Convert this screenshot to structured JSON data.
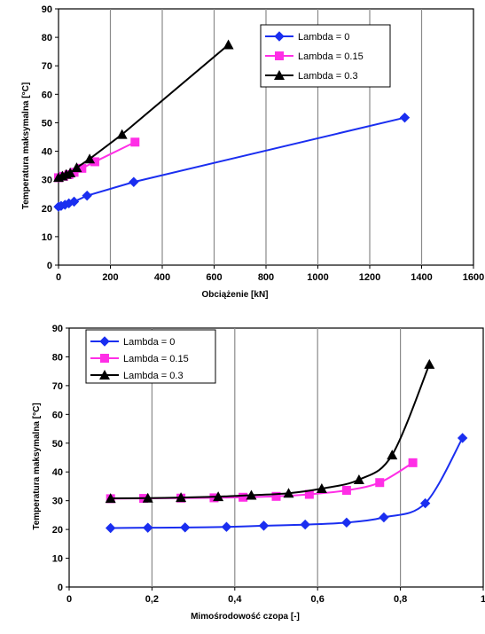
{
  "colors": {
    "lambda0": "#1a2ef0",
    "lambda015": "#ff2ee6",
    "lambda03": "#000000"
  },
  "chart_data": [
    {
      "type": "line",
      "xlabel": "Obciążenie [kN]",
      "ylabel": "Temperatura maksymalna [°C]",
      "xlim": [
        0,
        1600
      ],
      "ylim": [
        0,
        90
      ],
      "xticks": [
        "0",
        "200",
        "400",
        "600",
        "800",
        "1000",
        "1200",
        "1400",
        "1600"
      ],
      "yticks": [
        "0",
        "10",
        "20",
        "30",
        "40",
        "50",
        "60",
        "70",
        "80",
        "90"
      ],
      "grid": "vertical",
      "legend_position": "top-right",
      "series": [
        {
          "name": "Lambda = 0",
          "marker": "diamond",
          "x": [
            0,
            10,
            25,
            40,
            60,
            110,
            290,
            1335
          ],
          "y": [
            20.5,
            20.8,
            21.2,
            21.7,
            22.3,
            24.4,
            29.2,
            51.8
          ]
        },
        {
          "name": "Lambda = 0.15",
          "marker": "square",
          "x": [
            0,
            20,
            40,
            60,
            90,
            140,
            295
          ],
          "y": [
            30.7,
            31.2,
            31.8,
            32.6,
            34.0,
            36.3,
            43.2
          ]
        },
        {
          "name": "Lambda = 0.3",
          "marker": "triangle",
          "x": [
            0,
            15,
            30,
            45,
            70,
            120,
            245,
            655
          ],
          "y": [
            30.8,
            31.3,
            31.9,
            32.4,
            34.2,
            37.3,
            45.9,
            77.4
          ]
        }
      ]
    },
    {
      "type": "line",
      "xlabel": "Mimośrodowość czopa [-]",
      "ylabel": "Temperatura maksymalna [°C]",
      "xlim": [
        0,
        1
      ],
      "ylim": [
        0,
        90
      ],
      "xticks": [
        "0",
        "0,2",
        "0,4",
        "0,6",
        "0,8",
        "1"
      ],
      "yticks": [
        "0",
        "10",
        "20",
        "30",
        "40",
        "50",
        "60",
        "70",
        "80",
        "90"
      ],
      "grid": "vertical",
      "legend_position": "top-left",
      "series": [
        {
          "name": "Lambda = 0",
          "marker": "diamond",
          "x": [
            0.1,
            0.19,
            0.28,
            0.38,
            0.47,
            0.57,
            0.67,
            0.76,
            0.86,
            0.95
          ],
          "y": [
            20.5,
            20.6,
            20.7,
            20.9,
            21.3,
            21.7,
            22.4,
            24.2,
            29.1,
            51.8
          ]
        },
        {
          "name": "Lambda = 0.15",
          "marker": "square",
          "x": [
            0.1,
            0.18,
            0.27,
            0.35,
            0.42,
            0.5,
            0.58,
            0.67,
            0.75,
            0.83
          ],
          "y": [
            30.7,
            30.8,
            30.9,
            31.0,
            31.2,
            31.5,
            32.2,
            33.6,
            36.3,
            43.2
          ]
        },
        {
          "name": "Lambda = 0.3",
          "marker": "triangle",
          "x": [
            0.1,
            0.19,
            0.27,
            0.36,
            0.44,
            0.53,
            0.61,
            0.7,
            0.78,
            0.87
          ],
          "y": [
            30.8,
            30.9,
            31.1,
            31.4,
            31.9,
            32.6,
            34.2,
            37.3,
            45.9,
            77.4
          ]
        }
      ]
    }
  ]
}
